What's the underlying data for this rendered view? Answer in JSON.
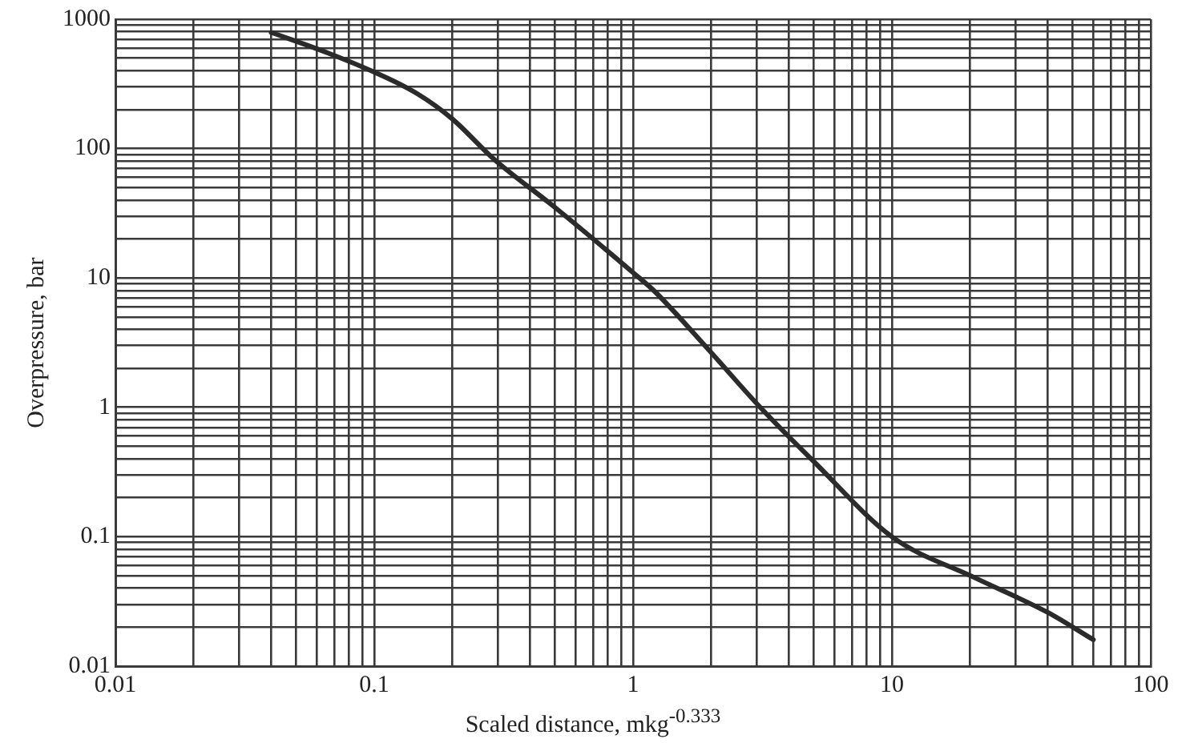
{
  "chart_data": {
    "type": "line",
    "xlabel": "Scaled distance, mkg$^{-0.333}$",
    "ylabel": "Overpressure, bar",
    "log": "xy",
    "grid": true,
    "legend": false,
    "marker": "none",
    "line_style": "solid",
    "x": [
      0.04,
      0.066,
      0.1,
      0.147,
      0.2,
      0.29,
      0.5,
      1,
      1.21,
      1.97,
      3.1,
      5,
      10,
      21,
      40,
      60
    ],
    "series": [
      {
        "color": "#2b2b2b",
        "values": [
          790,
          550,
          390,
          265,
          170,
          83,
          35,
          11,
          7.9,
          2.75,
          1,
          0.38,
          0.1,
          0.048,
          0.026,
          0.016
        ]
      }
    ],
    "xlim": [
      0.01,
      100
    ],
    "ylim": [
      0.01,
      1000
    ],
    "xticks": [
      0.01,
      {
        "value": 0.02,
        "label": null
      },
      {
        "value": 0.03,
        "label": null
      },
      {
        "value": 0.04,
        "label": null
      },
      {
        "value": 0.05,
        "label": null
      },
      {
        "value": 0.06,
        "label": null
      },
      {
        "value": 0.07,
        "label": null
      },
      {
        "value": 0.08,
        "label": null
      },
      {
        "value": 0.09,
        "label": null
      },
      0.1,
      {
        "value": 0.2,
        "label": null
      },
      {
        "value": 0.3,
        "label": null
      },
      {
        "value": 0.4,
        "label": null
      },
      {
        "value": 0.5,
        "label": null
      },
      {
        "value": 0.6,
        "label": null
      },
      {
        "value": 0.7,
        "label": null
      },
      {
        "value": 0.8,
        "label": null
      },
      {
        "value": 0.9,
        "label": null
      },
      1,
      {
        "value": 2,
        "label": null
      },
      {
        "value": 3,
        "label": null
      },
      {
        "value": 4,
        "label": null
      },
      {
        "value": 5,
        "label": null
      },
      {
        "value": 6,
        "label": null
      },
      {
        "value": 7,
        "label": null
      },
      {
        "value": 8,
        "label": null
      },
      {
        "value": 9,
        "label": null
      },
      10,
      {
        "value": 20,
        "label": null
      },
      {
        "value": 30,
        "label": null
      },
      {
        "value": 40,
        "label": null
      },
      {
        "value": 50,
        "label": null
      },
      {
        "value": 60,
        "label": null
      },
      {
        "value": 70,
        "label": null
      },
      {
        "value": 80,
        "label": null
      },
      {
        "value": 90,
        "label": null
      },
      100
    ],
    "yticks": [
      0.01,
      {
        "value": 0.02,
        "label": null
      },
      {
        "value": 0.03,
        "label": null
      },
      {
        "value": 0.04,
        "label": null
      },
      {
        "value": 0.05,
        "label": null
      },
      {
        "value": 0.06,
        "label": null
      },
      {
        "value": 0.07,
        "label": null
      },
      {
        "value": 0.08,
        "label": null
      },
      {
        "value": 0.09,
        "label": null
      },
      0.1,
      {
        "value": 0.2,
        "label": null
      },
      {
        "value": 0.3,
        "label": null
      },
      {
        "value": 0.4,
        "label": null
      },
      {
        "value": 0.5,
        "label": null
      },
      {
        "value": 0.6,
        "label": null
      },
      {
        "value": 0.7,
        "label": null
      },
      {
        "value": 0.8,
        "label": null
      },
      {
        "value": 0.9,
        "label": null
      },
      1,
      {
        "value": 2,
        "label": null
      },
      {
        "value": 3,
        "label": null
      },
      {
        "value": 4,
        "label": null
      },
      {
        "value": 5,
        "label": null
      },
      {
        "value": 6,
        "label": null
      },
      {
        "value": 7,
        "label": null
      },
      {
        "value": 8,
        "label": null
      },
      {
        "value": 9,
        "label": null
      },
      10,
      {
        "value": 20,
        "label": null
      },
      {
        "value": 30,
        "label": null
      },
      {
        "value": 40,
        "label": null
      },
      {
        "value": 50,
        "label": null
      },
      {
        "value": 60,
        "label": null
      },
      {
        "value": 70,
        "label": null
      },
      {
        "value": 80,
        "label": null
      },
      {
        "value": 90,
        "label": null
      },
      100,
      {
        "value": 200,
        "label": null
      },
      {
        "value": 300,
        "label": null
      },
      {
        "value": 400,
        "label": null
      },
      {
        "value": 500,
        "label": null
      },
      {
        "value": 600,
        "label": null
      },
      {
        "value": 700,
        "label": null
      },
      {
        "value": 800,
        "label": null
      },
      {
        "value": 900,
        "label": null
      },
      1000
    ]
  }
}
